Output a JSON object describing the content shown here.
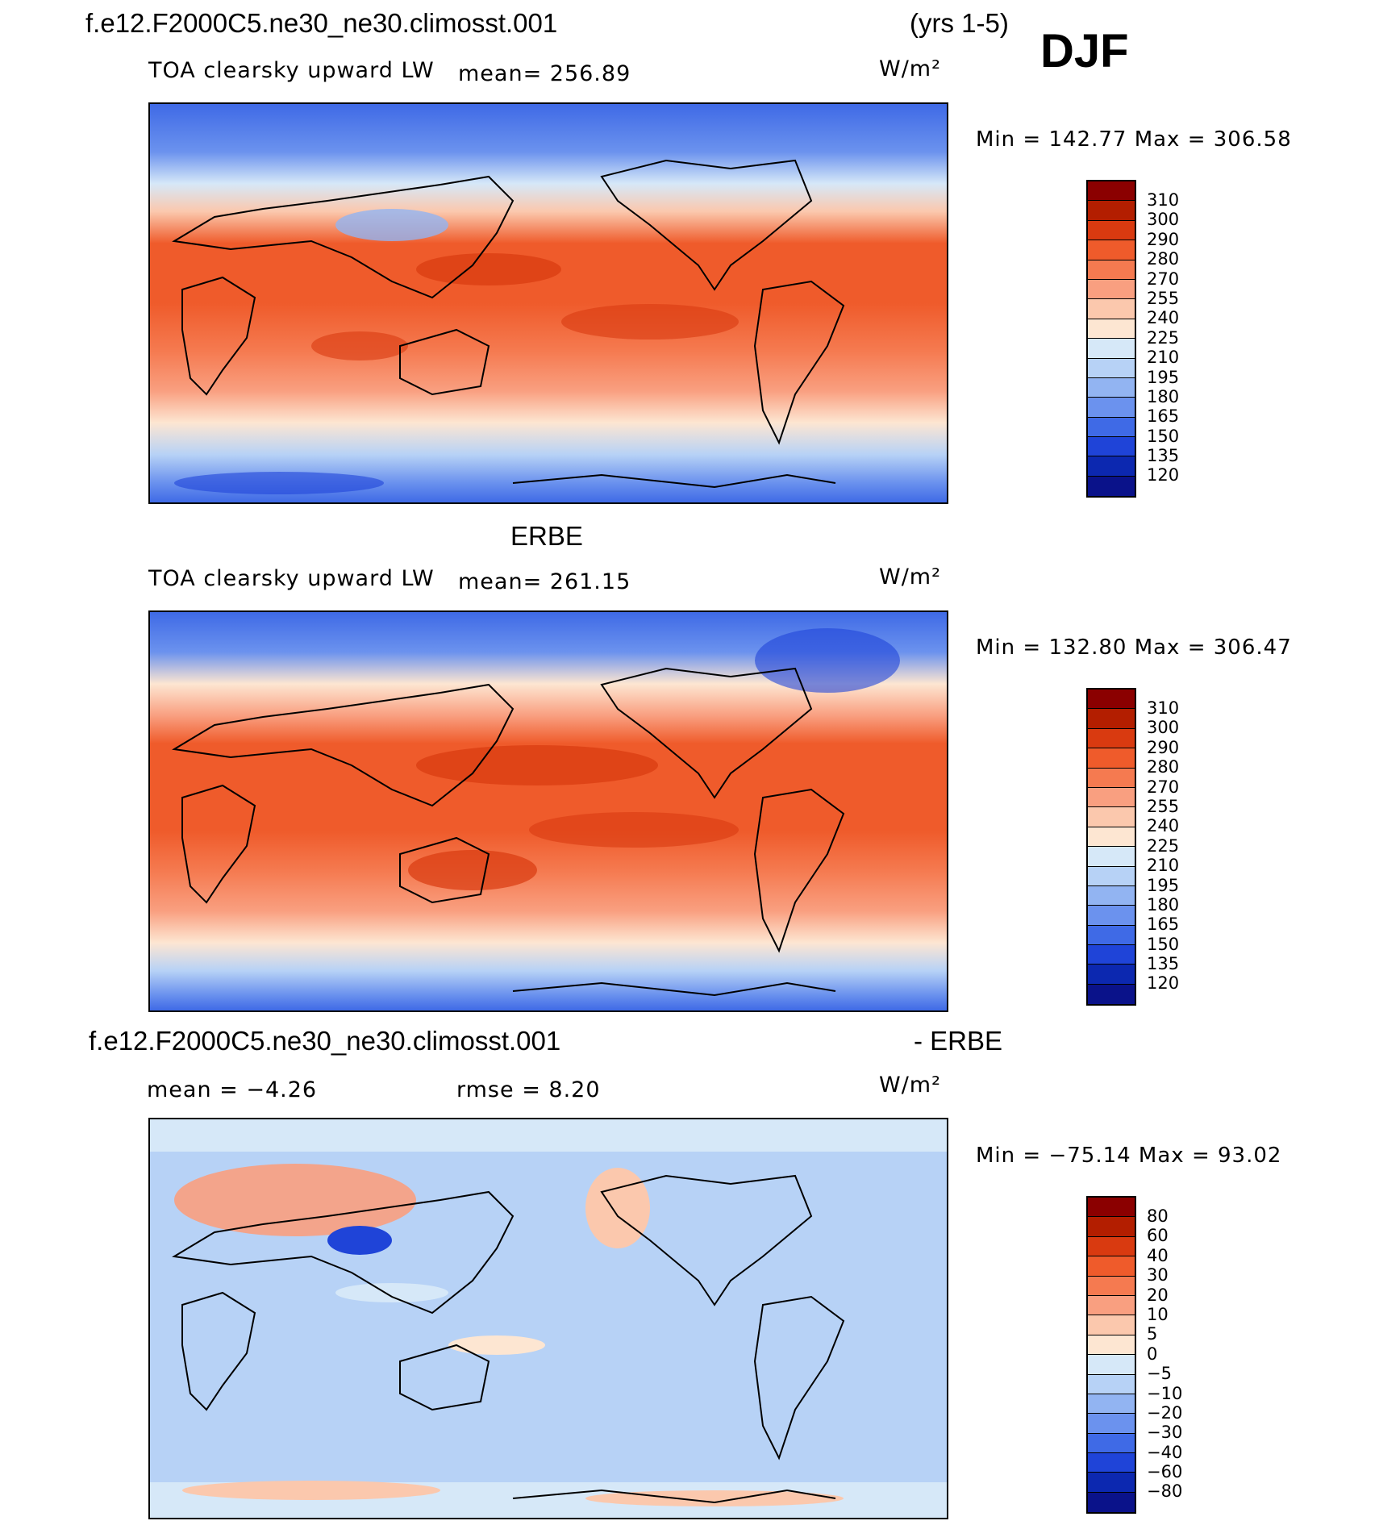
{
  "header": {
    "case_title": "f.e12.F2000C5.ne30_ne30.climosst.001",
    "years": "(yrs 1-5)",
    "season": "DJF"
  },
  "panels": [
    {
      "subtitle_left": "TOA clearsky upward LW",
      "stat_text": "mean= 256.89",
      "units": "W/m²",
      "minmax": "Min  =  142.77  Max  =  306.58",
      "colorbar_labels": [
        "310",
        "300",
        "290",
        "280",
        "270",
        "255",
        "240",
        "225",
        "210",
        "195",
        "180",
        "165",
        "150",
        "135",
        "120"
      ],
      "colorbar_colors": [
        "#8b0000",
        "#b31e00",
        "#d93a10",
        "#ef5b2b",
        "#f57a50",
        "#f99f80",
        "#fbc8ad",
        "#fde6d2",
        "#d6e8f8",
        "#b7d2f6",
        "#92b4f2",
        "#6b92ee",
        "#3f6ae6",
        "#1f44d8",
        "#0c28b0",
        "#0a128a"
      ]
    },
    {
      "title": "ERBE",
      "subtitle_left": "TOA clearsky upward LW",
      "stat_text": "mean= 261.15",
      "units": "W/m²",
      "minmax": "Min  =  132.80  Max  =  306.47",
      "colorbar_labels": [
        "310",
        "300",
        "290",
        "280",
        "270",
        "255",
        "240",
        "225",
        "210",
        "195",
        "180",
        "165",
        "150",
        "135",
        "120"
      ],
      "colorbar_colors": [
        "#8b0000",
        "#b31e00",
        "#d93a10",
        "#ef5b2b",
        "#f57a50",
        "#f99f80",
        "#fbc8ad",
        "#fde6d2",
        "#d6e8f8",
        "#b7d2f6",
        "#92b4f2",
        "#6b92ee",
        "#3f6ae6",
        "#1f44d8",
        "#0c28b0",
        "#0a128a"
      ]
    },
    {
      "title_left": "f.e12.F2000C5.ne30_ne30.climosst.001",
      "title_right": "- ERBE",
      "mean_text": "mean  =   −4.26",
      "rmse_text": "rmse  =     8.20",
      "units": "W/m²",
      "minmax": "Min  =  −75.14  Max  =    93.02",
      "colorbar_labels": [
        "80",
        "60",
        "40",
        "30",
        "20",
        "10",
        "5",
        "0",
        "−5",
        "−10",
        "−20",
        "−30",
        "−40",
        "−60",
        "−80"
      ],
      "colorbar_colors": [
        "#8b0000",
        "#b31e00",
        "#d93a10",
        "#ef5b2b",
        "#f57a50",
        "#f99f80",
        "#fbc8ad",
        "#fde6d2",
        "#d6e8f8",
        "#b7d2f6",
        "#92b4f2",
        "#6b92ee",
        "#3f6ae6",
        "#1f44d8",
        "#0c28b0",
        "#0a128a"
      ]
    }
  ]
}
